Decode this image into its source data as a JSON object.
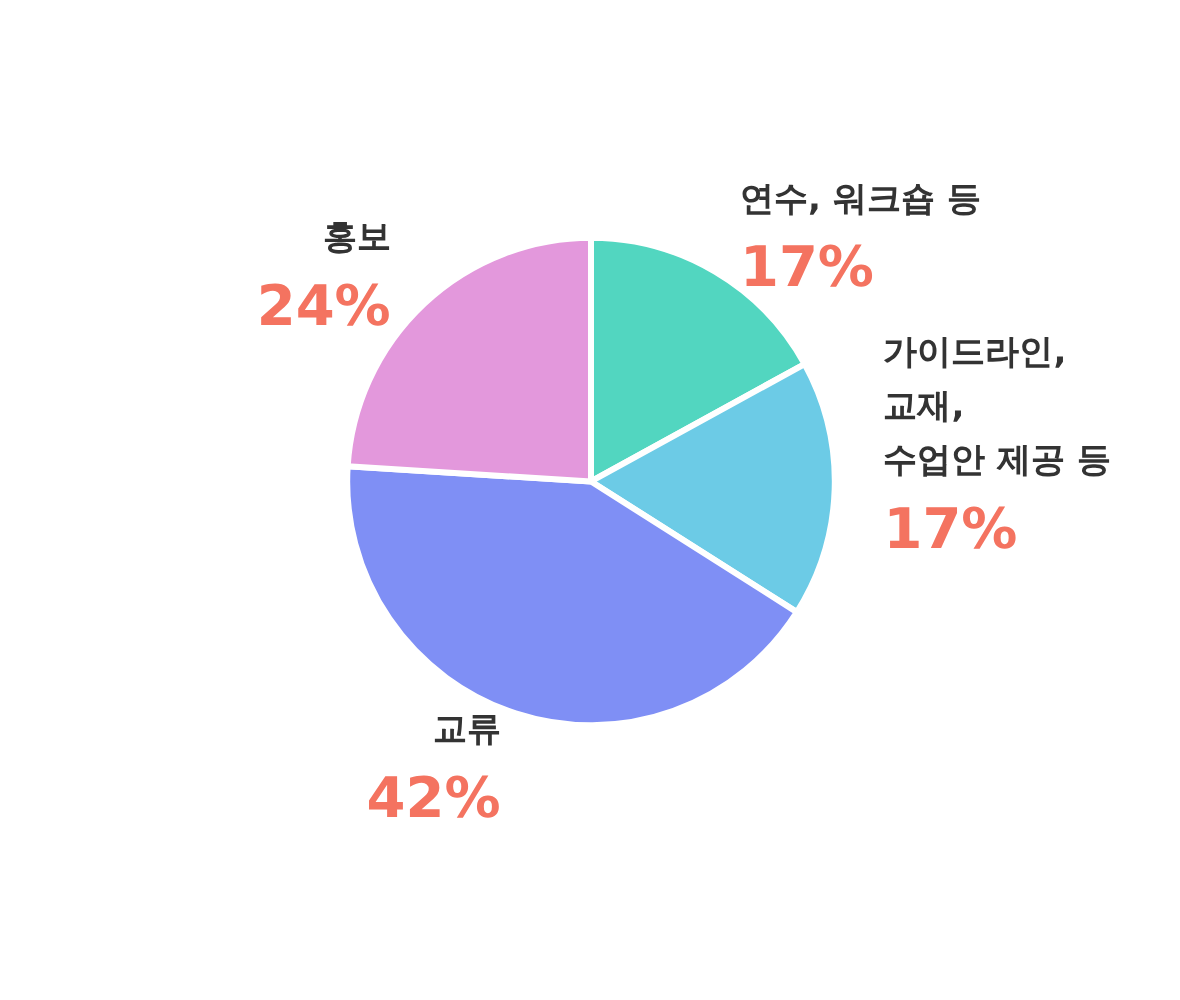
{
  "chart_data": {
    "type": "pie",
    "categories": [
      "연수, 워크숍 등",
      "가이드라인,\n교재,\n수업안 제공 등",
      "교류",
      "홍보"
    ],
    "values": [
      17,
      17,
      42,
      24
    ],
    "colors": [
      "#52d6c0",
      "#6ccbe6",
      "#7f8ff5",
      "#e398dc"
    ],
    "value_labels": [
      "17%",
      "17%",
      "42%",
      "24%"
    ]
  }
}
